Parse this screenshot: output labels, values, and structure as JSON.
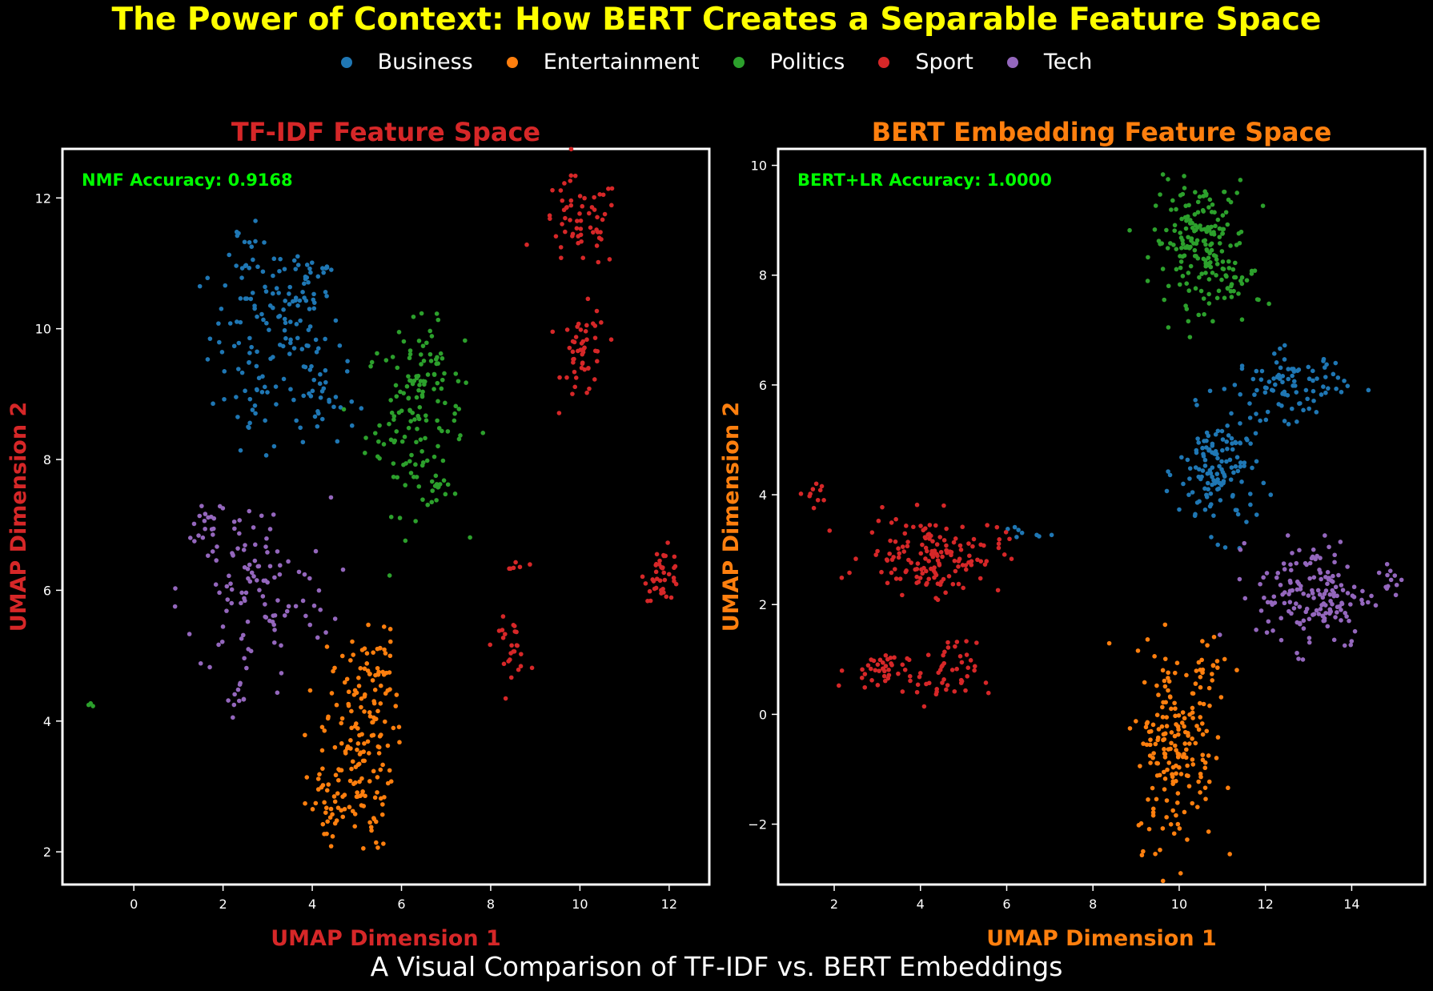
{
  "title": "The Power of Context: How BERT Creates a Separable Feature Space",
  "subtitle": "A Visual Comparison of TF-IDF vs. BERT Embeddings",
  "colors": {
    "Business": "#1f77b4",
    "Entertainment": "#ff7f0e",
    "Politics": "#2ca02c",
    "Sport": "#d62728",
    "Tech": "#9467bd"
  },
  "legend": [
    "Business",
    "Entertainment",
    "Politics",
    "Sport",
    "Tech"
  ],
  "chart_data": [
    {
      "type": "scatter",
      "title": "TF-IDF Feature Space",
      "title_color": "#d62728",
      "xlabel": "UMAP Dimension 1",
      "ylabel": "UMAP Dimension 2",
      "xlim": [
        -1.6,
        12.9
      ],
      "ylim": [
        1.5,
        12.75
      ],
      "xticks": [
        0,
        2,
        4,
        6,
        8,
        10,
        12
      ],
      "yticks": [
        2,
        4,
        6,
        8,
        10,
        12
      ],
      "annotation": "NMF Accuracy: 0.9168",
      "clusters": [
        {
          "category": "Business",
          "cx": 3.2,
          "cy": 9.9,
          "sx": 0.75,
          "sy": 0.7,
          "n": 130
        },
        {
          "category": "Business",
          "cx": 2.4,
          "cy": 11.2,
          "sx": 0.25,
          "sy": 0.25,
          "n": 12
        },
        {
          "category": "Business",
          "cx": 3.9,
          "cy": 10.8,
          "sx": 0.3,
          "sy": 0.3,
          "n": 22
        },
        {
          "category": "Business",
          "cx": 4.2,
          "cy": 8.9,
          "sx": 0.4,
          "sy": 0.3,
          "n": 25
        },
        {
          "category": "Business",
          "cx": 2.6,
          "cy": 8.6,
          "sx": 0.2,
          "sy": 0.2,
          "n": 10
        },
        {
          "category": "Politics",
          "cx": 6.3,
          "cy": 8.6,
          "sx": 0.55,
          "sy": 0.7,
          "n": 120
        },
        {
          "category": "Politics",
          "cx": 6.6,
          "cy": 9.3,
          "sx": 0.3,
          "sy": 0.3,
          "n": 30
        },
        {
          "category": "Politics",
          "cx": 6.8,
          "cy": 7.6,
          "sx": 0.2,
          "sy": 0.2,
          "n": 10
        },
        {
          "category": "Politics",
          "cx": -0.95,
          "cy": 4.25,
          "sx": 0.03,
          "sy": 0.04,
          "n": 3
        },
        {
          "category": "Sport",
          "cx": 10.0,
          "cy": 11.6,
          "sx": 0.45,
          "sy": 0.35,
          "n": 60
        },
        {
          "category": "Sport",
          "cx": 10.1,
          "cy": 9.6,
          "sx": 0.25,
          "sy": 0.35,
          "n": 50
        },
        {
          "category": "Sport",
          "cx": 11.85,
          "cy": 6.25,
          "sx": 0.2,
          "sy": 0.2,
          "n": 40
        },
        {
          "category": "Sport",
          "cx": 8.45,
          "cy": 5.15,
          "sx": 0.2,
          "sy": 0.2,
          "n": 25
        },
        {
          "category": "Sport",
          "cx": 8.5,
          "cy": 6.3,
          "sx": 0.12,
          "sy": 0.12,
          "n": 6
        },
        {
          "category": "Tech",
          "cx": 2.7,
          "cy": 6.0,
          "sx": 0.85,
          "sy": 0.7,
          "n": 110
        },
        {
          "category": "Tech",
          "cx": 1.7,
          "cy": 7.1,
          "sx": 0.2,
          "sy": 0.2,
          "n": 15
        },
        {
          "category": "Tech",
          "cx": 2.4,
          "cy": 4.3,
          "sx": 0.15,
          "sy": 0.15,
          "n": 10
        },
        {
          "category": "Entertainment",
          "cx": 5.0,
          "cy": 3.6,
          "sx": 0.4,
          "sy": 0.8,
          "n": 150
        },
        {
          "category": "Entertainment",
          "cx": 5.4,
          "cy": 4.8,
          "sx": 0.25,
          "sy": 0.3,
          "n": 30
        },
        {
          "category": "Entertainment",
          "cx": 4.4,
          "cy": 2.7,
          "sx": 0.25,
          "sy": 0.3,
          "n": 25
        }
      ]
    },
    {
      "type": "scatter",
      "title": "BERT Embedding Feature Space",
      "title_color": "#ff7f0e",
      "xlabel": "UMAP Dimension 1",
      "ylabel": "UMAP Dimension 2",
      "xlim": [
        0.7,
        15.7
      ],
      "ylim": [
        -3.1,
        10.3
      ],
      "xticks": [
        2,
        4,
        6,
        8,
        10,
        12,
        14
      ],
      "yticks": [
        -2,
        0,
        2,
        4,
        6,
        8,
        10
      ],
      "annotation": "BERT+LR Accuracy: 1.0000",
      "clusters": [
        {
          "category": "Politics",
          "cx": 10.5,
          "cy": 8.6,
          "sx": 0.55,
          "sy": 0.55,
          "n": 180
        },
        {
          "category": "Politics",
          "cx": 11.3,
          "cy": 7.8,
          "sx": 0.3,
          "sy": 0.3,
          "n": 25
        },
        {
          "category": "Business",
          "cx": 12.6,
          "cy": 6.0,
          "sx": 0.65,
          "sy": 0.3,
          "n": 90
        },
        {
          "category": "Business",
          "cx": 10.9,
          "cy": 4.4,
          "sx": 0.45,
          "sy": 0.55,
          "n": 140
        },
        {
          "category": "Business",
          "cx": 6.3,
          "cy": 3.3,
          "sx": 0.25,
          "sy": 0.08,
          "n": 8
        },
        {
          "category": "Sport",
          "cx": 4.3,
          "cy": 2.9,
          "sx": 0.8,
          "sy": 0.35,
          "n": 150
        },
        {
          "category": "Sport",
          "cx": 3.0,
          "cy": 0.8,
          "sx": 0.35,
          "sy": 0.18,
          "n": 40
        },
        {
          "category": "Sport",
          "cx": 4.6,
          "cy": 0.7,
          "sx": 0.35,
          "sy": 0.3,
          "n": 45
        },
        {
          "category": "Sport",
          "cx": 1.5,
          "cy": 3.95,
          "sx": 0.15,
          "sy": 0.15,
          "n": 10
        },
        {
          "category": "Tech",
          "cx": 13.1,
          "cy": 2.2,
          "sx": 0.65,
          "sy": 0.5,
          "n": 160
        },
        {
          "category": "Tech",
          "cx": 14.9,
          "cy": 2.4,
          "sx": 0.15,
          "sy": 0.2,
          "n": 12
        },
        {
          "category": "Entertainment",
          "cx": 9.9,
          "cy": -0.6,
          "sx": 0.45,
          "sy": 0.9,
          "n": 180
        },
        {
          "category": "Entertainment",
          "cx": 10.6,
          "cy": 0.8,
          "sx": 0.35,
          "sy": 0.4,
          "n": 25
        }
      ]
    }
  ]
}
